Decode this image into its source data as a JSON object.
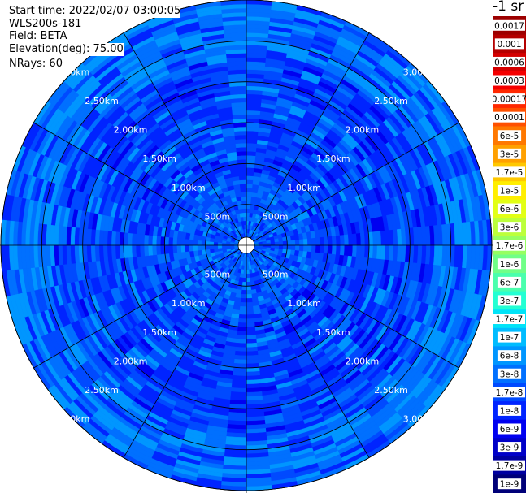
{
  "header": {
    "start_time": "Start time: 2022/02/07 03:00:05",
    "instrument": "WLS200s-181",
    "field": "Field: BETA",
    "elevation": "Elevation(deg): 75.00",
    "nrays": "NRays: 60"
  },
  "colorbar": {
    "unit_label": "-1 sr",
    "entries": [
      {
        "label": "0.0017",
        "color": "#9d0000"
      },
      {
        "label": "0.001",
        "color": "#b40000"
      },
      {
        "label": "0.0006",
        "color": "#d40000"
      },
      {
        "label": "0.0003",
        "color": "#f50000"
      },
      {
        "label": "0.00017",
        "color": "#ff2800"
      },
      {
        "label": "0.0001",
        "color": "#ff5000"
      },
      {
        "label": "6e-5",
        "color": "#ff7800"
      },
      {
        "label": "3e-5",
        "color": "#ffa000"
      },
      {
        "label": "1.7e-5",
        "color": "#ffc800"
      },
      {
        "label": "1e-5",
        "color": "#ffee00"
      },
      {
        "label": "6e-6",
        "color": "#e2ff15"
      },
      {
        "label": "3e-6",
        "color": "#bcff3b"
      },
      {
        "label": "1.7e-6",
        "color": "#96ff61"
      },
      {
        "label": "1e-6",
        "color": "#70ff87"
      },
      {
        "label": "6e-7",
        "color": "#4affad"
      },
      {
        "label": "3e-7",
        "color": "#24ffd3"
      },
      {
        "label": "1.7e-7",
        "color": "#00e4f8"
      },
      {
        "label": "1e-7",
        "color": "#00bcff"
      },
      {
        "label": "6e-8",
        "color": "#0096ff"
      },
      {
        "label": "3e-8",
        "color": "#0070ff"
      },
      {
        "label": "1.7e-8",
        "color": "#004aff"
      },
      {
        "label": "1e-8",
        "color": "#0024ff"
      },
      {
        "label": "6e-9",
        "color": "#0000f0"
      },
      {
        "label": "3e-9",
        "color": "#0000c8"
      },
      {
        "label": "1.7e-9",
        "color": "#0000a0"
      },
      {
        "label": "1e-9",
        "color": "#000078"
      }
    ]
  },
  "chart_data": {
    "type": "heatmap",
    "projection": "polar-ppi",
    "field": "BETA",
    "n_rays": 60,
    "max_range_km": 3.0,
    "blind_zone_km": 0.1,
    "range_rings": [
      {
        "range_km": 0.5,
        "label": "500m"
      },
      {
        "range_km": 1.0,
        "label": "1.00km"
      },
      {
        "range_km": 1.5,
        "label": "1.50km"
      },
      {
        "range_km": 2.0,
        "label": "2.00km"
      },
      {
        "range_km": 2.5,
        "label": "2.50km"
      },
      {
        "range_km": 3.0,
        "label": "3.00km"
      }
    ],
    "azimuth_spokes_deg": [
      0,
      30,
      60,
      90,
      120,
      150,
      180,
      210,
      240,
      270,
      300,
      330
    ],
    "dominant_range": "1e-8 to 6e-8 sr-1",
    "grid": true
  }
}
